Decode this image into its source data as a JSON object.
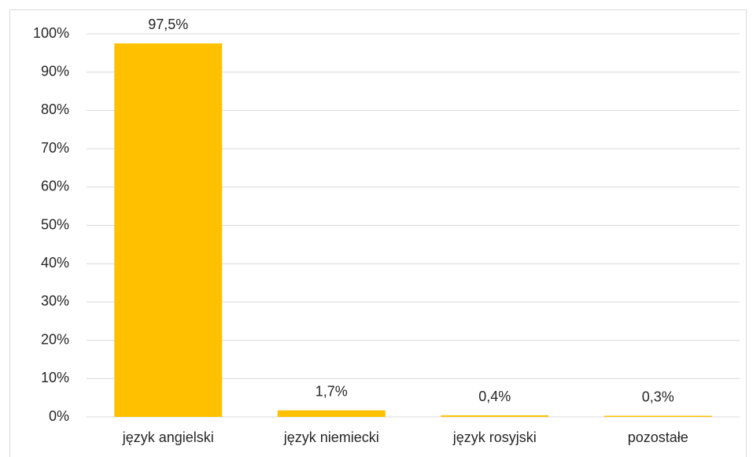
{
  "chart_data": {
    "type": "bar",
    "categories": [
      "język angielski",
      "język niemiecki",
      "język rosyjski",
      "pozostałe"
    ],
    "values": [
      97.5,
      1.7,
      0.4,
      0.3
    ],
    "value_labels": [
      "97,5%",
      "1,7%",
      "0,4%",
      "0,3%"
    ],
    "color": "#ffc000",
    "ylim": [
      0,
      100
    ],
    "yticks": [
      {
        "value": 0,
        "label": "0%"
      },
      {
        "value": 10,
        "label": "10%"
      },
      {
        "value": 20,
        "label": "20%"
      },
      {
        "value": 30,
        "label": "30%"
      },
      {
        "value": 40,
        "label": "40%"
      },
      {
        "value": 50,
        "label": "50%"
      },
      {
        "value": 60,
        "label": "60%"
      },
      {
        "value": 70,
        "label": "70%"
      },
      {
        "value": 80,
        "label": "80%"
      },
      {
        "value": 90,
        "label": "90%"
      },
      {
        "value": 100,
        "label": "100%"
      }
    ],
    "grid": true
  }
}
